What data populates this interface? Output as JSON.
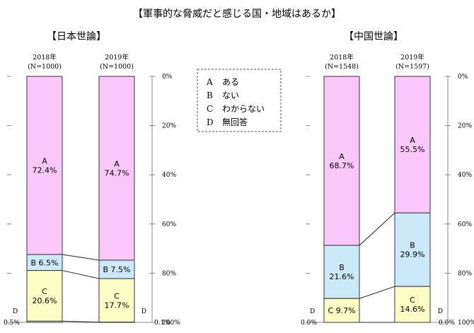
{
  "title": "【軍事的な脅威だと感じる国・地域はあるか】",
  "legend": [
    {
      "key": "A",
      "label": "ある"
    },
    {
      "key": "B",
      "label": "ない"
    },
    {
      "key": "C",
      "label": "わからない"
    },
    {
      "key": "D",
      "label": "無回答"
    }
  ],
  "colors": {
    "A": "#f9c8f9",
    "B": "#cce9fa",
    "C": "#fcfcc5",
    "D": "#ffffff"
  },
  "chart_data": [
    {
      "type": "bar",
      "stacked": true,
      "title": "【日本世論】",
      "categories": [
        "2018年",
        "2019年"
      ],
      "sample_sizes": [
        "(N=1000)",
        "(N=1000)"
      ],
      "ylim": [
        0,
        100
      ],
      "yticks": [
        "0%",
        "20%",
        "40%",
        "60%",
        "80%",
        "100%"
      ],
      "series": [
        {
          "name": "A",
          "values": [
            72.4,
            74.7
          ],
          "labels": [
            "A\n72.4%",
            "A\n74.7%"
          ]
        },
        {
          "name": "B",
          "values": [
            6.5,
            7.5
          ],
          "labels": [
            "B 6.5%",
            "B 7.5%"
          ]
        },
        {
          "name": "C",
          "values": [
            20.6,
            17.7
          ],
          "labels": [
            "C\n20.6%",
            "C\n17.7%"
          ]
        },
        {
          "name": "D",
          "values": [
            0.5,
            0.1
          ],
          "labels": [
            "D\n0.5%",
            "D\n0.1%"
          ]
        }
      ]
    },
    {
      "type": "bar",
      "stacked": true,
      "title": "【中国世論】",
      "categories": [
        "2018年",
        "2019年"
      ],
      "sample_sizes": [
        "(N=1548)",
        "(N=1597)"
      ],
      "ylim": [
        0,
        100
      ],
      "yticks": [
        "0%",
        "20%",
        "40%",
        "60%",
        "80%",
        "100%"
      ],
      "series": [
        {
          "name": "A",
          "values": [
            68.7,
            55.5
          ],
          "labels": [
            "A\n68.7%",
            "A\n55.5%"
          ]
        },
        {
          "name": "B",
          "values": [
            21.6,
            29.9
          ],
          "labels": [
            "B\n21.6%",
            "B\n29.9%"
          ]
        },
        {
          "name": "C",
          "values": [
            9.7,
            14.6
          ],
          "labels": [
            "C 9.7%",
            "C\n14.6%"
          ]
        },
        {
          "name": "D",
          "values": [
            0.0,
            0.0
          ],
          "labels": [
            "D\n0.0%",
            "D\n0.0%"
          ]
        }
      ]
    }
  ]
}
